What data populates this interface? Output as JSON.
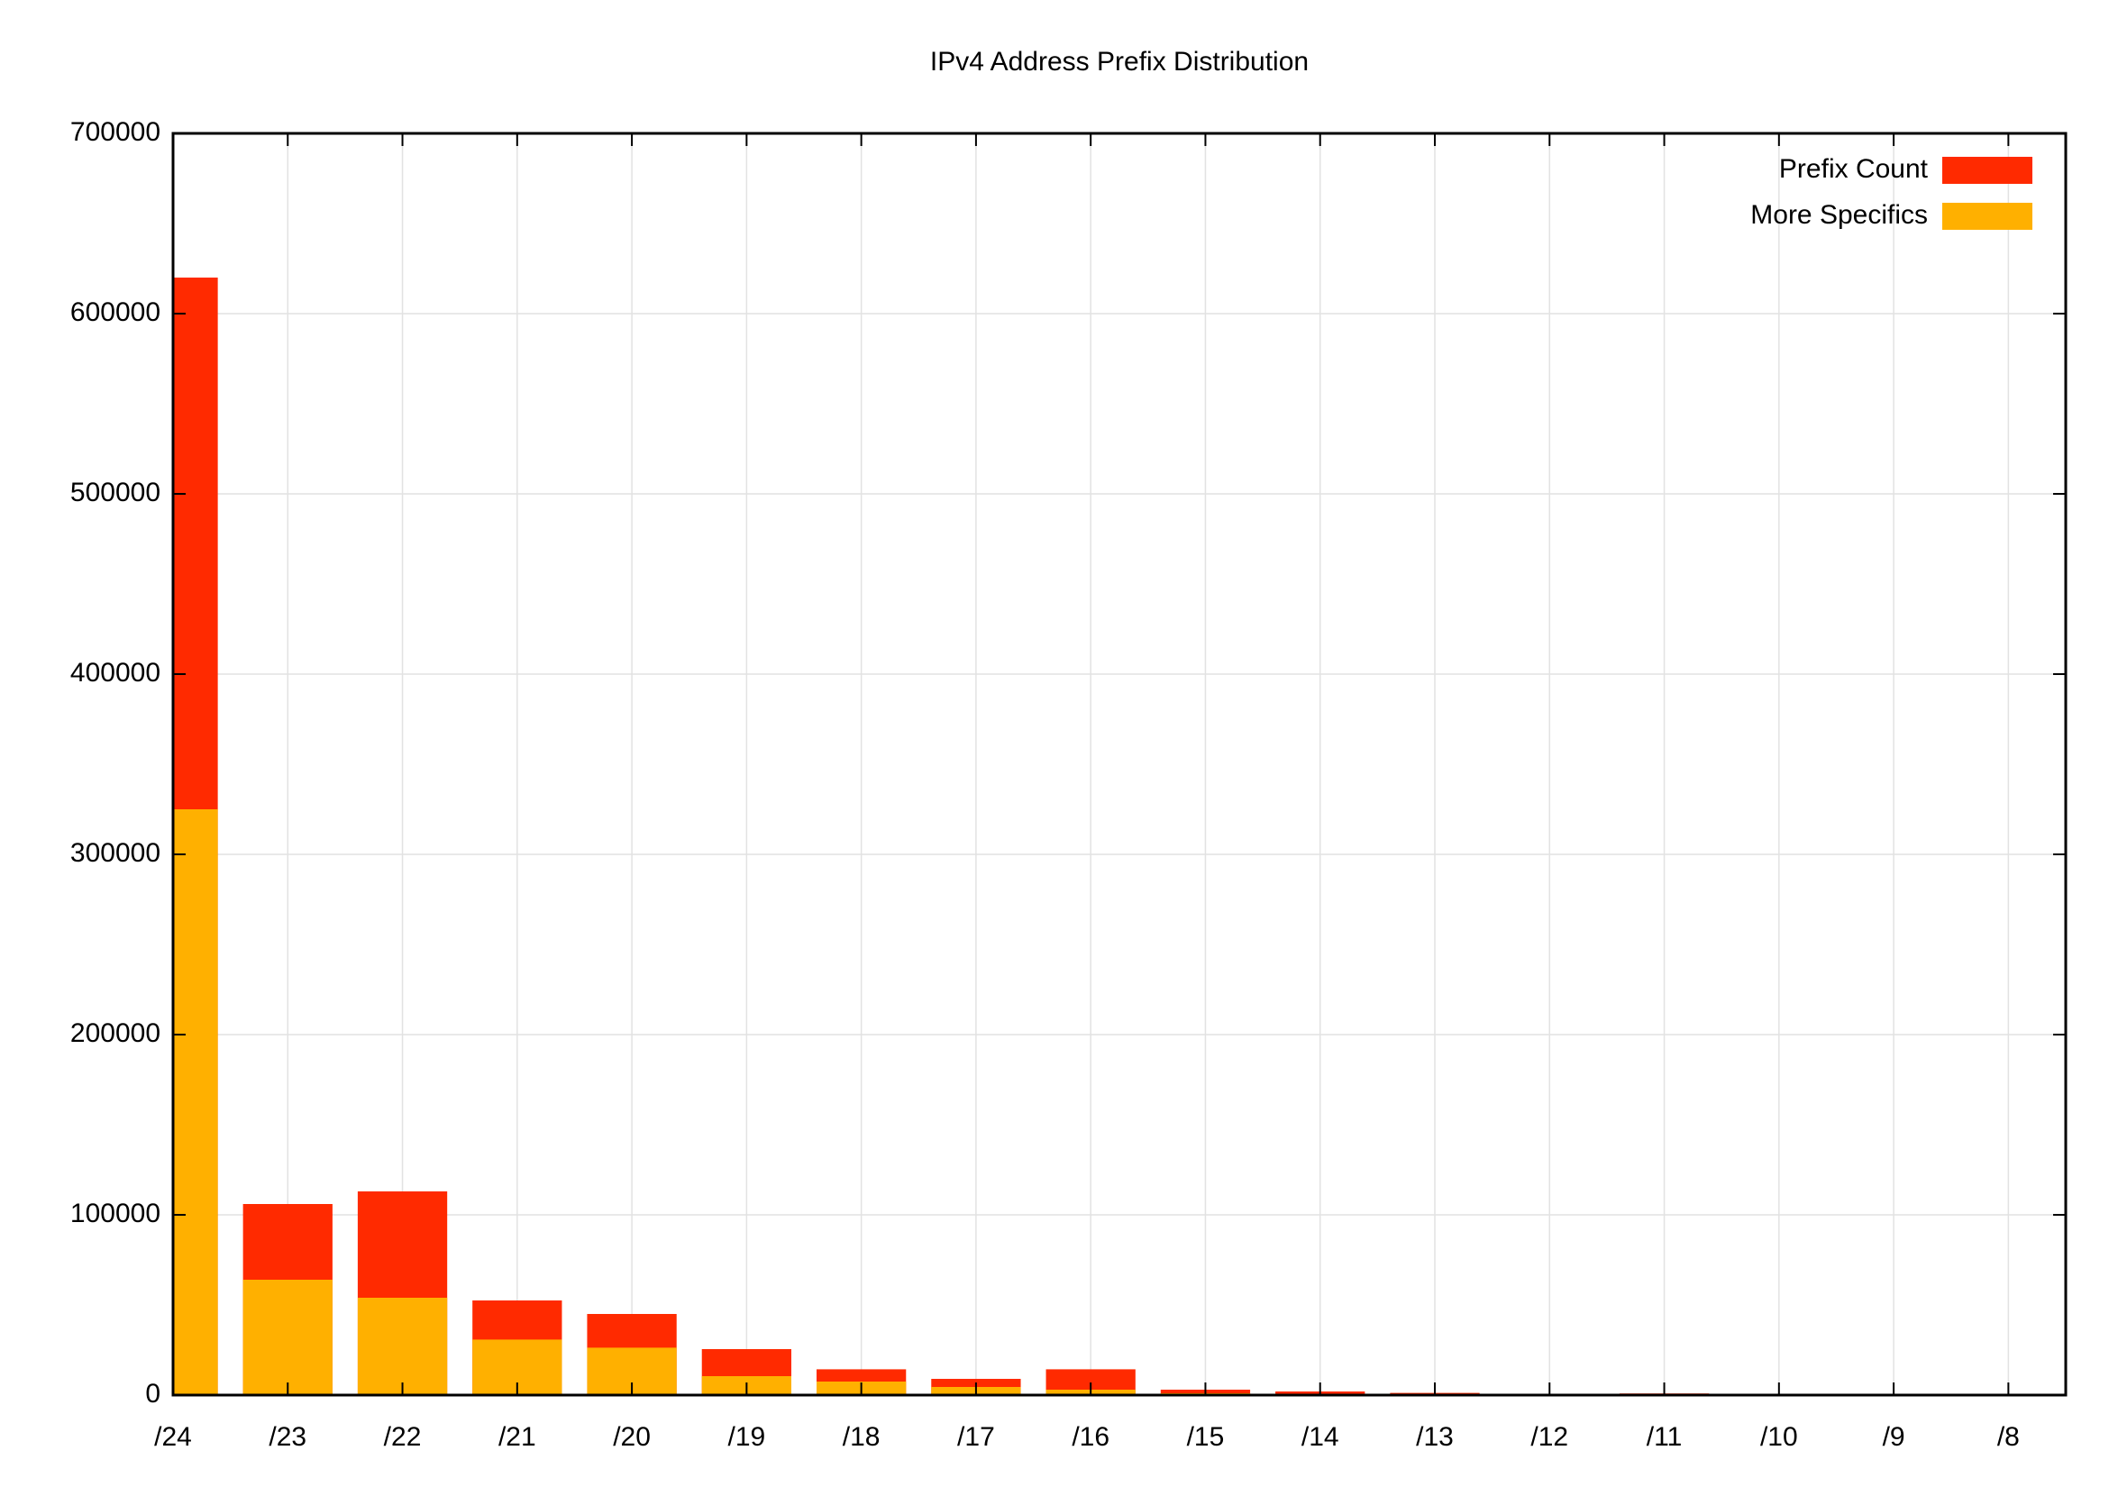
{
  "chart_data": {
    "type": "bar",
    "title": "IPv4 Address Prefix Distribution",
    "categories": [
      "/24",
      "/23",
      "/22",
      "/21",
      "/20",
      "/19",
      "/18",
      "/17",
      "/16",
      "/15",
      "/14",
      "/13",
      "/12",
      "/11",
      "/10",
      "/9",
      "/8"
    ],
    "series": [
      {
        "name": "Prefix Count",
        "color": "#ff2a00",
        "values": [
          620000,
          106000,
          113000,
          52500,
          45000,
          25500,
          14300,
          9000,
          14300,
          3000,
          2000,
          1200,
          700,
          900,
          700,
          50,
          20
        ]
      },
      {
        "name": "More Specifics",
        "color": "#ffb000",
        "values": [
          325000,
          64000,
          54000,
          30800,
          26300,
          10500,
          7500,
          4500,
          3000,
          1000,
          700,
          500,
          300,
          300,
          300,
          20,
          10
        ]
      }
    ],
    "ylim": [
      0,
      700000
    ],
    "yticks": [
      0,
      100000,
      200000,
      300000,
      400000,
      500000,
      600000,
      700000
    ],
    "grid": true,
    "legend": "upper right"
  }
}
